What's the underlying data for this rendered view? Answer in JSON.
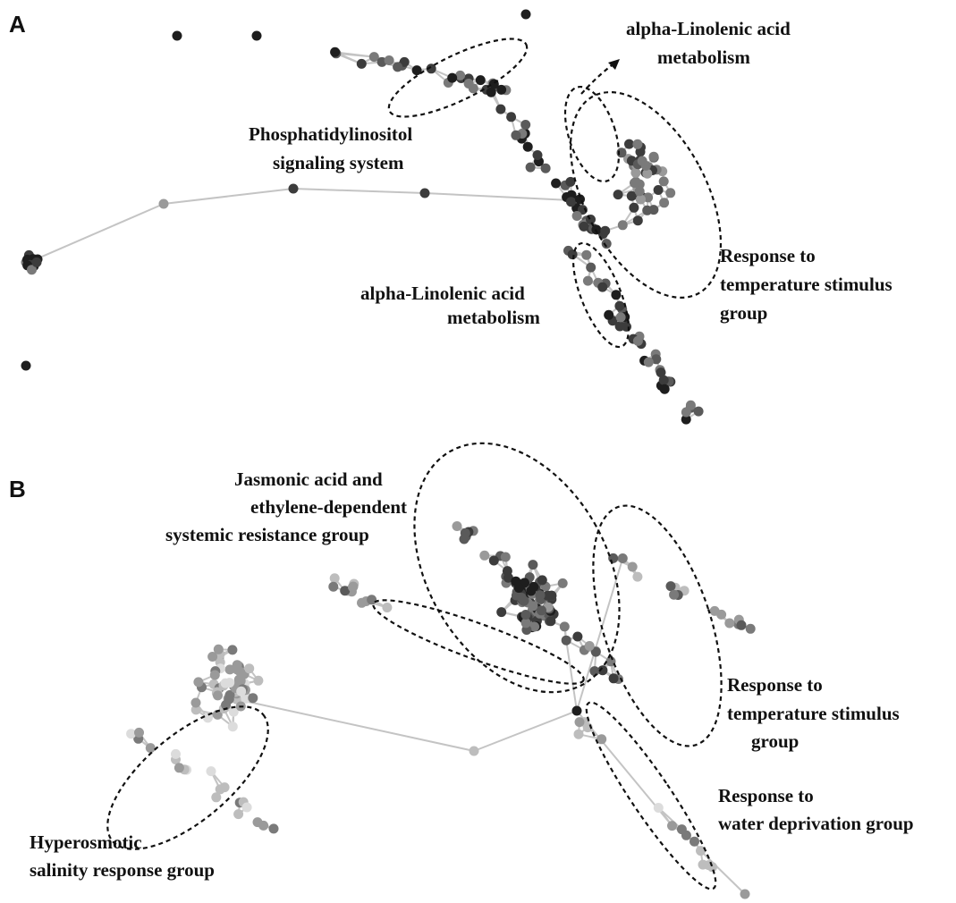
{
  "panels": [
    {
      "letter": "A",
      "annotations": [
        {
          "lines": [
            "Phosphatidylinositol",
            "signaling system"
          ]
        },
        {
          "lines": [
            "alpha-Linolenic acid",
            "metabolism"
          ]
        },
        {
          "lines": [
            "alpha-Linolenic acid",
            "metabolism"
          ]
        },
        {
          "lines": [
            "Response to",
            "temperature stimulus",
            "group"
          ]
        }
      ]
    },
    {
      "letter": "B",
      "annotations": [
        {
          "lines": [
            "Jasmonic acid and",
            "ethylene-dependent",
            "systemic resistance group"
          ]
        },
        {
          "lines": [
            "Response to",
            "temperature stimulus",
            "group"
          ]
        },
        {
          "lines": [
            "Response to",
            "water deprivation group"
          ]
        },
        {
          "lines": [
            "Hyperosmotic",
            "salinity response group"
          ]
        }
      ]
    }
  ],
  "colors": {
    "edge": "#c4c4c4",
    "node_shades": [
      "#1e1e1e",
      "#3c3c3c",
      "#5a5a5a",
      "#7a7a7a",
      "#9a9a9a",
      "#bdbdbd",
      "#dcdcdc"
    ],
    "hull": "#111111"
  }
}
